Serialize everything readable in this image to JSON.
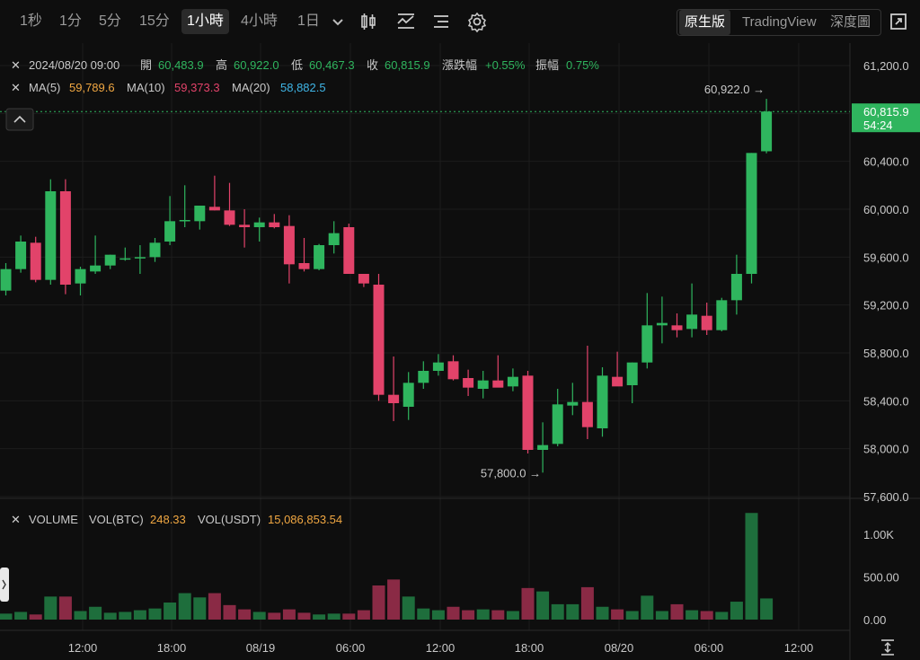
{
  "toolbar": {
    "timeframes": [
      "1秒",
      "1分",
      "5分",
      "15分",
      "1小時",
      "4小時",
      "1日"
    ],
    "active_timeframe": "1小時",
    "views": [
      "原生版",
      "TradingView",
      "深度圖"
    ],
    "active_view": "原生版"
  },
  "ohlc": {
    "date": "2024/08/20 09:00",
    "open_label": "開",
    "open": "60,483.9",
    "high_label": "高",
    "high": "60,922.0",
    "low_label": "低",
    "low": "60,467.3",
    "close_label": "收",
    "close": "60,815.9",
    "change_label": "漲跌幅",
    "change": "+0.55%",
    "amp_label": "振幅",
    "amp": "0.75%"
  },
  "ma": {
    "ma5_label": "MA(5)",
    "ma5": "59,789.6",
    "ma10_label": "MA(10)",
    "ma10": "59,373.3",
    "ma20_label": "MA(20)",
    "ma20": "58,882.5"
  },
  "price_tag": {
    "price": "60,815.9",
    "countdown": "54:24"
  },
  "annotations": {
    "high_marker": "60,922.0 →",
    "low_marker": "57,800.0 →"
  },
  "volume_header": {
    "title": "VOLUME",
    "btc_label": "VOL(BTC)",
    "btc": "248.33",
    "usdt_label": "VOL(USDT)",
    "usdt": "15,086,853.54"
  },
  "colors": {
    "up": "#2fb55e",
    "down": "#e2436a",
    "bg": "#0e0e0e",
    "price_tag": "#2fb55e"
  },
  "chart_data": {
    "type": "candlestick",
    "price_axis": {
      "ticks": [
        61200,
        60800,
        60400,
        60000,
        59600,
        59200,
        58800,
        58400,
        58000,
        57600
      ],
      "tick_labels": [
        "61,200.0",
        "60,800.0",
        "60,400.0",
        "60,000.0",
        "59,600.0",
        "59,200.0",
        "58,800.0",
        "58,400.0",
        "58,000.0",
        "57,600.0"
      ]
    },
    "volume_axis": {
      "ticks": [
        1000,
        500,
        0
      ],
      "tick_labels": [
        "1.00K",
        "500.00",
        "0.00"
      ]
    },
    "time_labels": [
      "12:00",
      "18:00",
      "08/19",
      "06:00",
      "12:00",
      "18:00",
      "08/20",
      "06:00",
      "12:00"
    ],
    "candles": [
      {
        "o": 59320,
        "h": 59550,
        "l": 59280,
        "c": 59500,
        "v": 70
      },
      {
        "o": 59500,
        "h": 59780,
        "l": 59470,
        "c": 59730,
        "v": 90
      },
      {
        "o": 59720,
        "h": 59770,
        "l": 59390,
        "c": 59410,
        "v": 60
      },
      {
        "o": 59410,
        "h": 60250,
        "l": 59370,
        "c": 60150,
        "v": 270
      },
      {
        "o": 60150,
        "h": 60250,
        "l": 59290,
        "c": 59370,
        "v": 270
      },
      {
        "o": 59380,
        "h": 59520,
        "l": 59280,
        "c": 59500,
        "v": 100
      },
      {
        "o": 59480,
        "h": 59780,
        "l": 59460,
        "c": 59530,
        "v": 150
      },
      {
        "o": 59530,
        "h": 59620,
        "l": 59500,
        "c": 59620,
        "v": 80
      },
      {
        "o": 59580,
        "h": 59680,
        "l": 59570,
        "c": 59590,
        "v": 90
      },
      {
        "o": 59600,
        "h": 59700,
        "l": 59460,
        "c": 59600,
        "v": 110
      },
      {
        "o": 59600,
        "h": 59760,
        "l": 59560,
        "c": 59720,
        "v": 130
      },
      {
        "o": 59730,
        "h": 60110,
        "l": 59700,
        "c": 59900,
        "v": 200
      },
      {
        "o": 59900,
        "h": 60200,
        "l": 59850,
        "c": 59910,
        "v": 310
      },
      {
        "o": 59900,
        "h": 60020,
        "l": 59830,
        "c": 60030,
        "v": 260
      },
      {
        "o": 60020,
        "h": 60280,
        "l": 59990,
        "c": 59990,
        "v": 310
      },
      {
        "o": 59990,
        "h": 60220,
        "l": 59860,
        "c": 59870,
        "v": 170
      },
      {
        "o": 59870,
        "h": 60000,
        "l": 59680,
        "c": 59850,
        "v": 120
      },
      {
        "o": 59850,
        "h": 59930,
        "l": 59730,
        "c": 59890,
        "v": 90
      },
      {
        "o": 59890,
        "h": 59960,
        "l": 59840,
        "c": 59850,
        "v": 80
      },
      {
        "o": 59860,
        "h": 59950,
        "l": 59380,
        "c": 59540,
        "v": 120
      },
      {
        "o": 59550,
        "h": 59760,
        "l": 59480,
        "c": 59500,
        "v": 80
      },
      {
        "o": 59500,
        "h": 59710,
        "l": 59490,
        "c": 59700,
        "v": 60
      },
      {
        "o": 59700,
        "h": 59900,
        "l": 59630,
        "c": 59800,
        "v": 70
      },
      {
        "o": 59850,
        "h": 59880,
        "l": 59470,
        "c": 59460,
        "v": 70
      },
      {
        "o": 59460,
        "h": 59460,
        "l": 59350,
        "c": 59380,
        "v": 110
      },
      {
        "o": 59370,
        "h": 59460,
        "l": 58400,
        "c": 58450,
        "v": 400
      },
      {
        "o": 58450,
        "h": 58770,
        "l": 58230,
        "c": 58380,
        "v": 470
      },
      {
        "o": 58350,
        "h": 58640,
        "l": 58240,
        "c": 58550,
        "v": 270
      },
      {
        "o": 58550,
        "h": 58730,
        "l": 58500,
        "c": 58650,
        "v": 130
      },
      {
        "o": 58650,
        "h": 58790,
        "l": 58610,
        "c": 58720,
        "v": 110
      },
      {
        "o": 58730,
        "h": 58780,
        "l": 58570,
        "c": 58580,
        "v": 150
      },
      {
        "o": 58590,
        "h": 58660,
        "l": 58440,
        "c": 58510,
        "v": 110
      },
      {
        "o": 58500,
        "h": 58650,
        "l": 58420,
        "c": 58570,
        "v": 120
      },
      {
        "o": 58570,
        "h": 58780,
        "l": 58520,
        "c": 58510,
        "v": 110
      },
      {
        "o": 58520,
        "h": 58670,
        "l": 58480,
        "c": 58600,
        "v": 100
      },
      {
        "o": 58610,
        "h": 58650,
        "l": 57960,
        "c": 57990,
        "v": 370
      },
      {
        "o": 57990,
        "h": 58220,
        "l": 57800,
        "c": 58030,
        "v": 330
      },
      {
        "o": 58040,
        "h": 58500,
        "l": 58020,
        "c": 58370,
        "v": 180
      },
      {
        "o": 58360,
        "h": 58550,
        "l": 58280,
        "c": 58390,
        "v": 180
      },
      {
        "o": 58390,
        "h": 58860,
        "l": 58080,
        "c": 58180,
        "v": 380
      },
      {
        "o": 58170,
        "h": 58680,
        "l": 58100,
        "c": 58610,
        "v": 150
      },
      {
        "o": 58600,
        "h": 58810,
        "l": 58530,
        "c": 58520,
        "v": 120
      },
      {
        "o": 58530,
        "h": 58720,
        "l": 58380,
        "c": 58720,
        "v": 100
      },
      {
        "o": 58720,
        "h": 59300,
        "l": 58670,
        "c": 59030,
        "v": 280
      },
      {
        "o": 59030,
        "h": 59270,
        "l": 58880,
        "c": 59050,
        "v": 100
      },
      {
        "o": 59030,
        "h": 59130,
        "l": 58930,
        "c": 58990,
        "v": 180
      },
      {
        "o": 59000,
        "h": 59380,
        "l": 58930,
        "c": 59120,
        "v": 110
      },
      {
        "o": 59110,
        "h": 59220,
        "l": 58950,
        "c": 58990,
        "v": 100
      },
      {
        "o": 58990,
        "h": 59260,
        "l": 58980,
        "c": 59240,
        "v": 90
      },
      {
        "o": 59240,
        "h": 59620,
        "l": 59120,
        "c": 59460,
        "v": 210
      },
      {
        "o": 59460,
        "h": 60470,
        "l": 59380,
        "c": 60470,
        "v": 1250
      },
      {
        "o": 60484,
        "h": 60922,
        "l": 60467,
        "c": 60816,
        "v": 248
      }
    ]
  }
}
